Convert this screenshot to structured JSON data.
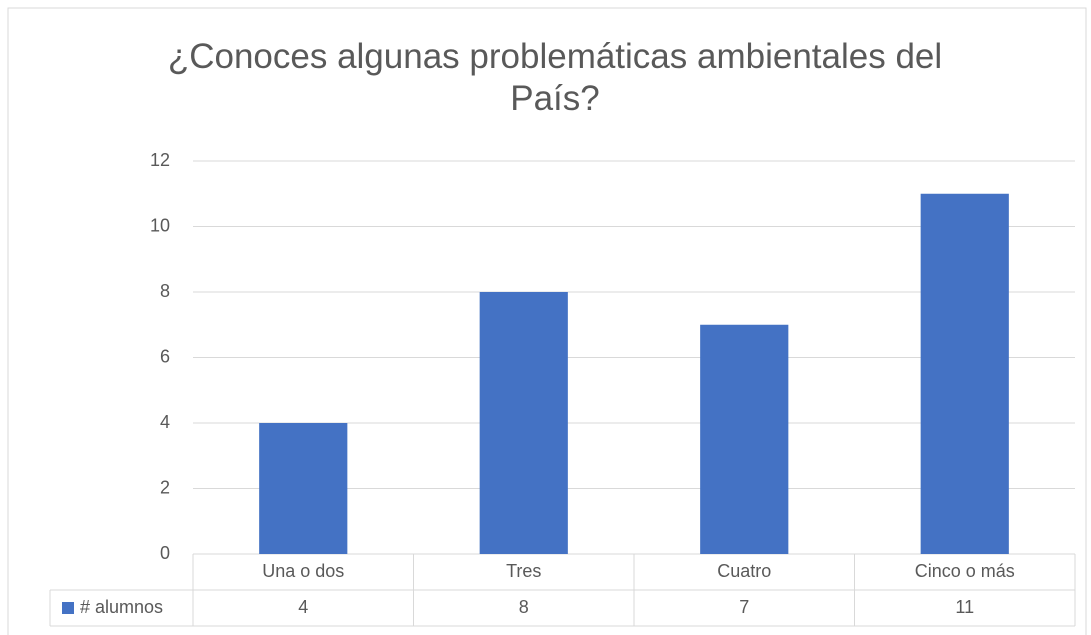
{
  "chart_data": {
    "type": "bar",
    "title": "¿Conoces algunas problemáticas ambientales del País?",
    "categories": [
      "Una o dos",
      "Tres",
      "Cuatro",
      "Cinco o más"
    ],
    "series": [
      {
        "name": "# alumnos",
        "color": "#4472c4",
        "values": [
          4,
          8,
          7,
          11
        ]
      }
    ],
    "ylim": [
      0,
      12
    ],
    "yticks": [
      0,
      2,
      4,
      6,
      8,
      10,
      12
    ],
    "grid": true,
    "data_table": true
  }
}
